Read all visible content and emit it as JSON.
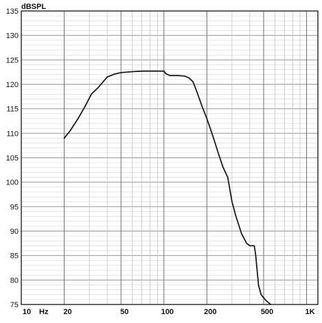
{
  "chart_data": {
    "type": "line",
    "ylabel": "dBSPL",
    "xunit": "Hz",
    "x_scale": "log",
    "xlim": [
      10,
      1200
    ],
    "ylim": [
      75,
      135
    ],
    "grid": true,
    "yticks": [
      75,
      80,
      85,
      90,
      95,
      100,
      105,
      110,
      115,
      120,
      125,
      130,
      135
    ],
    "xticks": [
      {
        "value": 10,
        "label": "10"
      },
      {
        "value": 20,
        "label": "20"
      },
      {
        "value": 50,
        "label": "50"
      },
      {
        "value": 100,
        "label": "100"
      },
      {
        "value": 200,
        "label": "200"
      },
      {
        "value": 500,
        "label": "500"
      },
      {
        "value": 1000,
        "label": "1K"
      }
    ],
    "series": [
      {
        "color": "#1a1a1a",
        "points": [
          [
            20,
            109
          ],
          [
            22,
            110.5
          ],
          [
            25,
            113
          ],
          [
            28,
            115.5
          ],
          [
            31,
            118
          ],
          [
            35,
            119.5
          ],
          [
            40,
            121.5
          ],
          [
            45,
            122.1
          ],
          [
            50,
            122.4
          ],
          [
            60,
            122.6
          ],
          [
            70,
            122.7
          ],
          [
            80,
            122.7
          ],
          [
            90,
            122.7
          ],
          [
            100,
            122.7
          ],
          [
            103,
            122.2
          ],
          [
            110,
            121.8
          ],
          [
            125,
            121.8
          ],
          [
            140,
            121.7
          ],
          [
            150,
            121.3
          ],
          [
            160,
            120.5
          ],
          [
            170,
            118.5
          ],
          [
            185,
            115.5
          ],
          [
            200,
            113
          ],
          [
            220,
            109.5
          ],
          [
            240,
            106
          ],
          [
            260,
            103
          ],
          [
            280,
            101
          ],
          [
            300,
            96
          ],
          [
            320,
            93
          ],
          [
            350,
            89.5
          ],
          [
            380,
            87.5
          ],
          [
            400,
            87
          ],
          [
            430,
            87
          ],
          [
            440,
            85
          ],
          [
            460,
            79
          ],
          [
            480,
            77
          ],
          [
            520,
            75.8
          ],
          [
            560,
            75
          ]
        ]
      }
    ]
  }
}
